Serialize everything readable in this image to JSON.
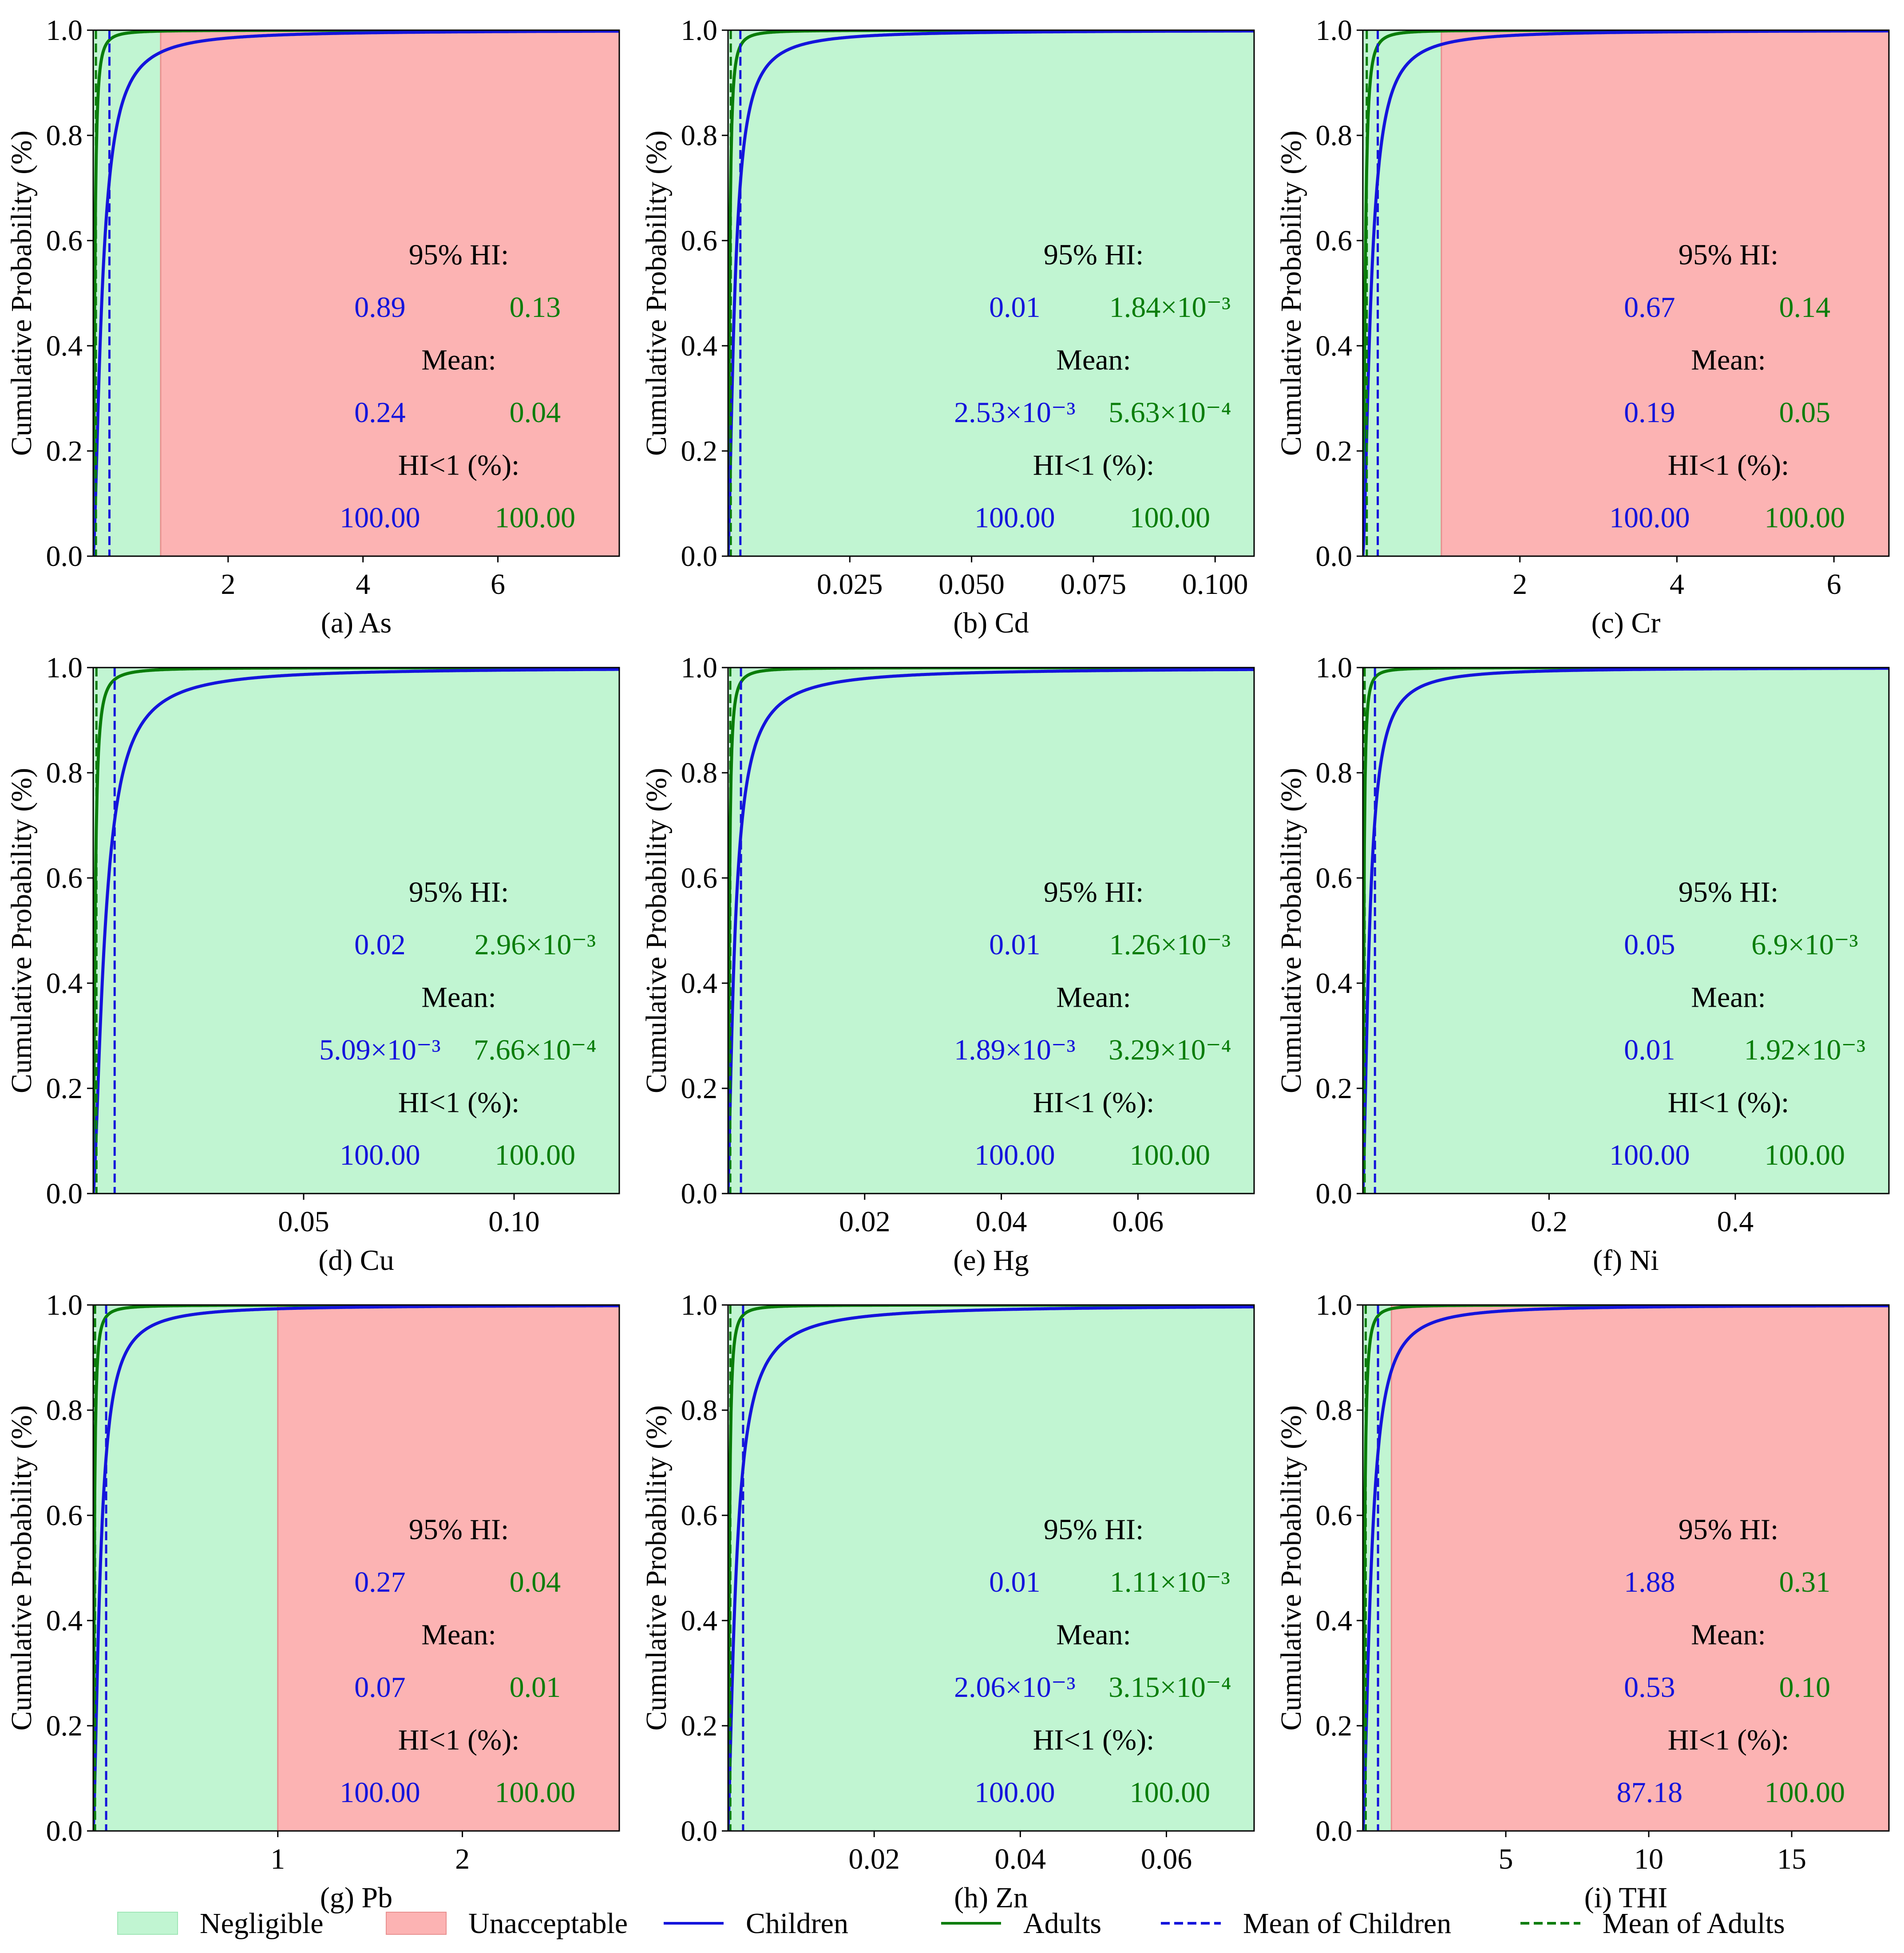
{
  "legend": {
    "placement": "bottom",
    "items": [
      {
        "key": "negligible",
        "label": "Negligible",
        "kind": "patch",
        "color": "#c1f5d2"
      },
      {
        "key": "unacceptable",
        "label": "Unacceptable",
        "kind": "patch",
        "color": "#fcb3b3"
      },
      {
        "key": "children",
        "label": "Children",
        "kind": "line",
        "color": "#1414dc"
      },
      {
        "key": "adults",
        "label": "Adults",
        "kind": "line",
        "color": "#0a7d0a"
      },
      {
        "key": "mean_children",
        "label": "Mean of Children",
        "kind": "dash",
        "color": "#1414dc"
      },
      {
        "key": "mean_adults",
        "label": "Mean of Adults",
        "kind": "dash",
        "color": "#0a7d0a"
      }
    ]
  },
  "colors": {
    "children": "#1414dc",
    "adults": "#0a7d0a",
    "negligible": "#c1f5d2",
    "unacceptable": "#fcb3b3",
    "text": "#000000"
  },
  "stat_labels": {
    "hi95": "95% HI:",
    "mean": "Mean:",
    "hi_lt1": "HI<1 (%):"
  },
  "chart_data": [
    {
      "type": "line",
      "title": "(a) As",
      "xlabel": "(a) As",
      "ylabel": "Cumulative Probability (%)",
      "xlim": [
        0,
        7.8
      ],
      "ylim": [
        0,
        1.0
      ],
      "threshold": 1.0,
      "xticks": [
        2,
        4,
        6
      ],
      "xtick_labels": [
        "2",
        "4",
        "6"
      ],
      "yticks": [
        0,
        0.2,
        0.4,
        0.6,
        0.8,
        1.0
      ],
      "ytick_labels": [
        "0.0",
        "0.2",
        "0.4",
        "0.6",
        "0.8",
        "1.0"
      ],
      "mean_children": 0.24,
      "mean_adults": 0.04,
      "p95_children": 0.89,
      "p95_adults": 0.13,
      "stats": {
        "hi95": {
          "children": "0.89",
          "adults": "0.13"
        },
        "mean": {
          "children": "0.24",
          "adults": "0.04"
        },
        "hi_lt1": {
          "children": "100.00",
          "adults": "100.00"
        }
      }
    },
    {
      "type": "line",
      "title": "(b) Cd",
      "xlabel": "(b) Cd",
      "ylabel": "Cumulative Probability (%)",
      "xlim": [
        0,
        0.108
      ],
      "ylim": [
        0,
        1.0
      ],
      "threshold": 1.0,
      "xticks": [
        0.025,
        0.05,
        0.075,
        0.1
      ],
      "xtick_labels": [
        "0.025",
        "0.050",
        "0.075",
        "0.100"
      ],
      "yticks": [
        0,
        0.2,
        0.4,
        0.6,
        0.8,
        1.0
      ],
      "ytick_labels": [
        "0.0",
        "0.2",
        "0.4",
        "0.6",
        "0.8",
        "1.0"
      ],
      "mean_children": 0.00253,
      "mean_adults": 0.000563,
      "p95_children": 0.01,
      "p95_adults": 0.00184,
      "stats": {
        "hi95": {
          "children": "0.01",
          "adults": "1.84×10⁻³"
        },
        "mean": {
          "children": "2.53×10⁻³",
          "adults": "5.63×10⁻⁴"
        },
        "hi_lt1": {
          "children": "100.00",
          "adults": "100.00"
        }
      }
    },
    {
      "type": "line",
      "title": "(c) Cr",
      "xlabel": "(c) Cr",
      "ylabel": "Cumulative Probability (%)",
      "xlim": [
        0,
        6.7
      ],
      "ylim": [
        0,
        1.0
      ],
      "threshold": 1.0,
      "xticks": [
        2,
        4,
        6
      ],
      "xtick_labels": [
        "2",
        "4",
        "6"
      ],
      "yticks": [
        0,
        0.2,
        0.4,
        0.6,
        0.8,
        1.0
      ],
      "ytick_labels": [
        "0.0",
        "0.2",
        "0.4",
        "0.6",
        "0.8",
        "1.0"
      ],
      "mean_children": 0.19,
      "mean_adults": 0.05,
      "p95_children": 0.67,
      "p95_adults": 0.14,
      "stats": {
        "hi95": {
          "children": "0.67",
          "adults": "0.14"
        },
        "mean": {
          "children": "0.19",
          "adults": "0.05"
        },
        "hi_lt1": {
          "children": "100.00",
          "adults": "100.00"
        }
      }
    },
    {
      "type": "line",
      "title": "(d) Cu",
      "xlabel": "(d) Cu",
      "ylabel": "Cumulative Probability (%)",
      "xlim": [
        0,
        0.125
      ],
      "ylim": [
        0,
        1.0
      ],
      "threshold": 1.0,
      "xticks": [
        0.05,
        0.1
      ],
      "xtick_labels": [
        "0.05",
        "0.10"
      ],
      "yticks": [
        0,
        0.2,
        0.4,
        0.6,
        0.8,
        1.0
      ],
      "ytick_labels": [
        "0.0",
        "0.2",
        "0.4",
        "0.6",
        "0.8",
        "1.0"
      ],
      "mean_children": 0.00509,
      "mean_adults": 0.000766,
      "p95_children": 0.02,
      "p95_adults": 0.00296,
      "stats": {
        "hi95": {
          "children": "0.02",
          "adults": "2.96×10⁻³"
        },
        "mean": {
          "children": "5.09×10⁻³",
          "adults": "7.66×10⁻⁴"
        },
        "hi_lt1": {
          "children": "100.00",
          "adults": "100.00"
        }
      }
    },
    {
      "type": "line",
      "title": "(e) Hg",
      "xlabel": "(e) Hg",
      "ylabel": "Cumulative Probability (%)",
      "xlim": [
        0,
        0.077
      ],
      "ylim": [
        0,
        1.0
      ],
      "threshold": 1.0,
      "xticks": [
        0.02,
        0.04,
        0.06
      ],
      "xtick_labels": [
        "0.02",
        "0.04",
        "0.06"
      ],
      "yticks": [
        0,
        0.2,
        0.4,
        0.6,
        0.8,
        1.0
      ],
      "ytick_labels": [
        "0.0",
        "0.2",
        "0.4",
        "0.6",
        "0.8",
        "1.0"
      ],
      "mean_children": 0.00189,
      "mean_adults": 0.000329,
      "p95_children": 0.01,
      "p95_adults": 0.00126,
      "stats": {
        "hi95": {
          "children": "0.01",
          "adults": "1.26×10⁻³"
        },
        "mean": {
          "children": "1.89×10⁻³",
          "adults": "3.29×10⁻⁴"
        },
        "hi_lt1": {
          "children": "100.00",
          "adults": "100.00"
        }
      }
    },
    {
      "type": "line",
      "title": "(f) Ni",
      "xlabel": "(f) Ni",
      "ylabel": "Cumulative Probability (%)",
      "xlim": [
        0,
        0.565
      ],
      "ylim": [
        0,
        1.0
      ],
      "threshold": 1.0,
      "xticks": [
        0.2,
        0.4
      ],
      "xtick_labels": [
        "0.2",
        "0.4"
      ],
      "yticks": [
        0,
        0.2,
        0.4,
        0.6,
        0.8,
        1.0
      ],
      "ytick_labels": [
        "0.0",
        "0.2",
        "0.4",
        "0.6",
        "0.8",
        "1.0"
      ],
      "mean_children": 0.013,
      "mean_adults": 0.00192,
      "p95_children": 0.05,
      "p95_adults": 0.0069,
      "stats": {
        "hi95": {
          "children": "0.05",
          "adults": "6.9×10⁻³"
        },
        "mean": {
          "children": "0.01",
          "adults": "1.92×10⁻³"
        },
        "hi_lt1": {
          "children": "100.00",
          "adults": "100.00"
        }
      }
    },
    {
      "type": "line",
      "title": "(g) Pb",
      "xlabel": "(g) Pb",
      "ylabel": "Cumulative Probability (%)",
      "xlim": [
        0,
        2.85
      ],
      "ylim": [
        0,
        1.0
      ],
      "threshold": 1.0,
      "xticks": [
        1,
        2
      ],
      "xtick_labels": [
        "1",
        "2"
      ],
      "yticks": [
        0,
        0.2,
        0.4,
        0.6,
        0.8,
        1.0
      ],
      "ytick_labels": [
        "0.0",
        "0.2",
        "0.4",
        "0.6",
        "0.8",
        "1.0"
      ],
      "mean_children": 0.07,
      "mean_adults": 0.01,
      "p95_children": 0.27,
      "p95_adults": 0.04,
      "stats": {
        "hi95": {
          "children": "0.27",
          "adults": "0.04"
        },
        "mean": {
          "children": "0.07",
          "adults": "0.01"
        },
        "hi_lt1": {
          "children": "100.00",
          "adults": "100.00"
        }
      }
    },
    {
      "type": "line",
      "title": "(h) Zn",
      "xlabel": "(h) Zn",
      "ylabel": "Cumulative Probability (%)",
      "xlim": [
        0,
        0.072
      ],
      "ylim": [
        0,
        1.0
      ],
      "threshold": 1.0,
      "xticks": [
        0.02,
        0.04,
        0.06
      ],
      "xtick_labels": [
        "0.02",
        "0.04",
        "0.06"
      ],
      "yticks": [
        0,
        0.2,
        0.4,
        0.6,
        0.8,
        1.0
      ],
      "ytick_labels": [
        "0.0",
        "0.2",
        "0.4",
        "0.6",
        "0.8",
        "1.0"
      ],
      "mean_children": 0.00206,
      "mean_adults": 0.000315,
      "p95_children": 0.01,
      "p95_adults": 0.00111,
      "stats": {
        "hi95": {
          "children": "0.01",
          "adults": "1.11×10⁻³"
        },
        "mean": {
          "children": "2.06×10⁻³",
          "adults": "3.15×10⁻⁴"
        },
        "hi_lt1": {
          "children": "100.00",
          "adults": "100.00"
        }
      }
    },
    {
      "type": "line",
      "title": "(i) THI",
      "xlabel": "(i) THI",
      "ylabel": "Cumulative Probability (%)",
      "xlim": [
        0,
        18.4
      ],
      "ylim": [
        0,
        1.0
      ],
      "threshold": 1.0,
      "xticks": [
        5,
        10,
        15
      ],
      "xtick_labels": [
        "5",
        "10",
        "15"
      ],
      "yticks": [
        0,
        0.2,
        0.4,
        0.6,
        0.8,
        1.0
      ],
      "ytick_labels": [
        "0.0",
        "0.2",
        "0.4",
        "0.6",
        "0.8",
        "1.0"
      ],
      "mean_children": 0.53,
      "mean_adults": 0.1,
      "p95_children": 1.88,
      "p95_adults": 0.31,
      "stats": {
        "hi95": {
          "children": "1.88",
          "adults": "0.31"
        },
        "mean": {
          "children": "0.53",
          "adults": "0.10"
        },
        "hi_lt1": {
          "children": "87.18",
          "adults": "100.00"
        }
      }
    }
  ]
}
